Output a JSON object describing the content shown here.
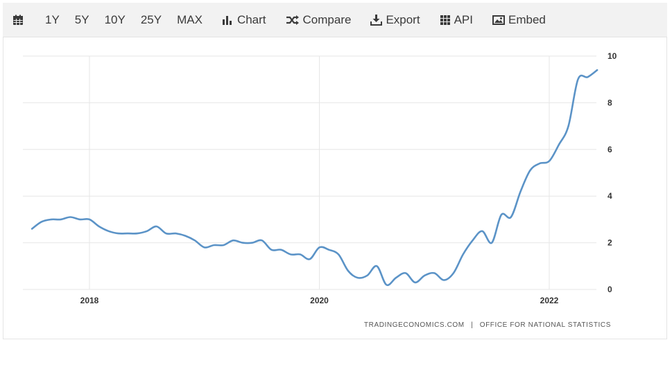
{
  "toolbar": {
    "ranges": [
      "1Y",
      "5Y",
      "10Y",
      "25Y",
      "MAX"
    ],
    "chart_label": "Chart",
    "compare_label": "Compare",
    "export_label": "Export",
    "api_label": "API",
    "embed_label": "Embed"
  },
  "source": {
    "site": "TRADINGECONOMICS.COM",
    "separator": "|",
    "provider": "OFFICE FOR NATIONAL STATISTICS"
  },
  "colors": {
    "line": "#5b93c7",
    "grid": "#e6e6e6",
    "toolbar_bg": "#f2f2f2"
  },
  "chart_data": {
    "type": "line",
    "title": "",
    "xlabel": "",
    "ylabel": "",
    "ylim": [
      0,
      10
    ],
    "yticks": [
      0,
      2,
      4,
      6,
      8,
      10
    ],
    "xlim": [
      "2017-07",
      "2022-07"
    ],
    "xticks": [
      {
        "label": "2018",
        "date": "2018-01"
      },
      {
        "label": "2020",
        "date": "2020-01"
      },
      {
        "label": "2022",
        "date": "2022-01"
      }
    ],
    "grid": true,
    "legend": "none",
    "series": [
      {
        "dates": [
          "2017-07",
          "2017-08",
          "2017-09",
          "2017-10",
          "2017-11",
          "2017-12",
          "2018-01",
          "2018-02",
          "2018-03",
          "2018-04",
          "2018-05",
          "2018-06",
          "2018-07",
          "2018-08",
          "2018-09",
          "2018-10",
          "2018-11",
          "2018-12",
          "2019-01",
          "2019-02",
          "2019-03",
          "2019-04",
          "2019-05",
          "2019-06",
          "2019-07",
          "2019-08",
          "2019-09",
          "2019-10",
          "2019-11",
          "2019-12",
          "2020-01",
          "2020-02",
          "2020-03",
          "2020-04",
          "2020-05",
          "2020-06",
          "2020-07",
          "2020-08",
          "2020-09",
          "2020-10",
          "2020-11",
          "2020-12",
          "2021-01",
          "2021-02",
          "2021-03",
          "2021-04",
          "2021-05",
          "2021-06",
          "2021-07",
          "2021-08",
          "2021-09",
          "2021-10",
          "2021-11",
          "2021-12",
          "2022-01",
          "2022-02",
          "2022-03",
          "2022-04",
          "2022-05",
          "2022-06"
        ],
        "values": [
          2.6,
          2.9,
          3.0,
          3.0,
          3.1,
          3.0,
          3.0,
          2.7,
          2.5,
          2.4,
          2.4,
          2.4,
          2.5,
          2.7,
          2.4,
          2.4,
          2.3,
          2.1,
          1.8,
          1.9,
          1.9,
          2.1,
          2.0,
          2.0,
          2.1,
          1.7,
          1.7,
          1.5,
          1.5,
          1.3,
          1.8,
          1.7,
          1.5,
          0.8,
          0.5,
          0.6,
          1.0,
          0.2,
          0.5,
          0.7,
          0.3,
          0.6,
          0.7,
          0.4,
          0.7,
          1.5,
          2.1,
          2.5,
          2.0,
          3.2,
          3.1,
          4.2,
          5.1,
          5.4,
          5.5,
          6.2,
          7.0,
          9.0,
          9.1,
          9.4
        ]
      }
    ]
  }
}
